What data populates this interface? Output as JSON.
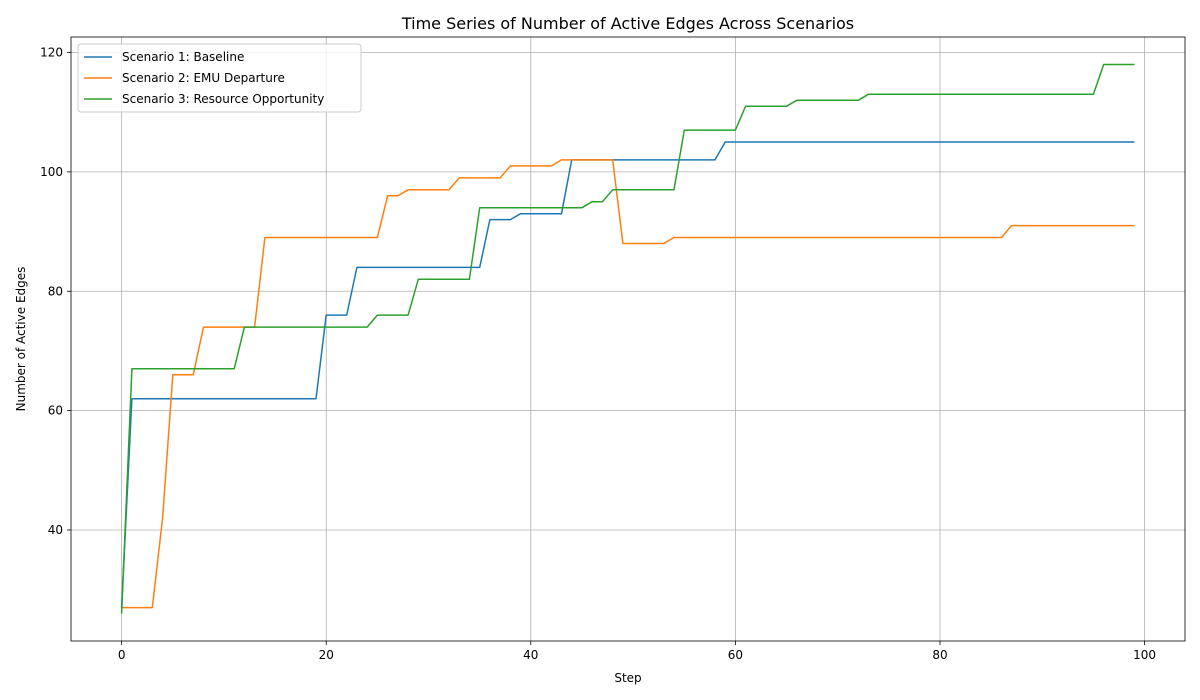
{
  "chart_data": {
    "type": "line",
    "title": "Time Series of Number of Active Edges Across Scenarios",
    "xlabel": "Step",
    "ylabel": "Number of Active Edges",
    "xlim": [
      -4.95,
      103.95
    ],
    "ylim": [
      21.4,
      122.6
    ],
    "xticks": [
      0,
      20,
      40,
      60,
      80,
      100
    ],
    "yticks": [
      40,
      60,
      80,
      100,
      120
    ],
    "grid": true,
    "legend_position": "top-left",
    "series": [
      {
        "name": "Scenario 1: Baseline",
        "color": "#1f77b4",
        "steps": [
          [
            0,
            27
          ],
          [
            1,
            62
          ],
          [
            19,
            62
          ],
          [
            20,
            76
          ],
          [
            22,
            76
          ],
          [
            23,
            84
          ],
          [
            35,
            84
          ],
          [
            36,
            92
          ],
          [
            38,
            92
          ],
          [
            39,
            93
          ],
          [
            43,
            93
          ],
          [
            44,
            102
          ],
          [
            58,
            102
          ],
          [
            59,
            105
          ],
          [
            99,
            105
          ]
        ]
      },
      {
        "name": "Scenario 2: EMU Departure",
        "color": "#ff7f0e",
        "steps": [
          [
            0,
            27
          ],
          [
            3,
            27
          ],
          [
            4,
            42
          ],
          [
            5,
            66
          ],
          [
            7,
            66
          ],
          [
            8,
            74
          ],
          [
            13,
            74
          ],
          [
            14,
            89
          ],
          [
            25,
            89
          ],
          [
            26,
            96
          ],
          [
            27,
            96
          ],
          [
            28,
            97
          ],
          [
            32,
            97
          ],
          [
            33,
            99
          ],
          [
            37,
            99
          ],
          [
            38,
            101
          ],
          [
            42,
            101
          ],
          [
            43,
            102
          ],
          [
            48,
            102
          ],
          [
            49,
            88
          ],
          [
            53,
            88
          ],
          [
            54,
            89
          ],
          [
            86,
            89
          ],
          [
            87,
            91
          ],
          [
            99,
            91
          ]
        ]
      },
      {
        "name": "Scenario 3: Resource Opportunity",
        "color": "#2ca02c",
        "steps": [
          [
            0,
            26
          ],
          [
            1,
            67
          ],
          [
            11,
            67
          ],
          [
            12,
            74
          ],
          [
            24,
            74
          ],
          [
            25,
            76
          ],
          [
            28,
            76
          ],
          [
            29,
            82
          ],
          [
            34,
            82
          ],
          [
            35,
            94
          ],
          [
            45,
            94
          ],
          [
            46,
            95
          ],
          [
            47,
            95
          ],
          [
            48,
            97
          ],
          [
            54,
            97
          ],
          [
            55,
            107
          ],
          [
            60,
            107
          ],
          [
            61,
            111
          ],
          [
            65,
            111
          ],
          [
            66,
            112
          ],
          [
            72,
            112
          ],
          [
            73,
            113
          ],
          [
            95,
            113
          ],
          [
            96,
            118
          ],
          [
            99,
            118
          ]
        ]
      }
    ]
  }
}
